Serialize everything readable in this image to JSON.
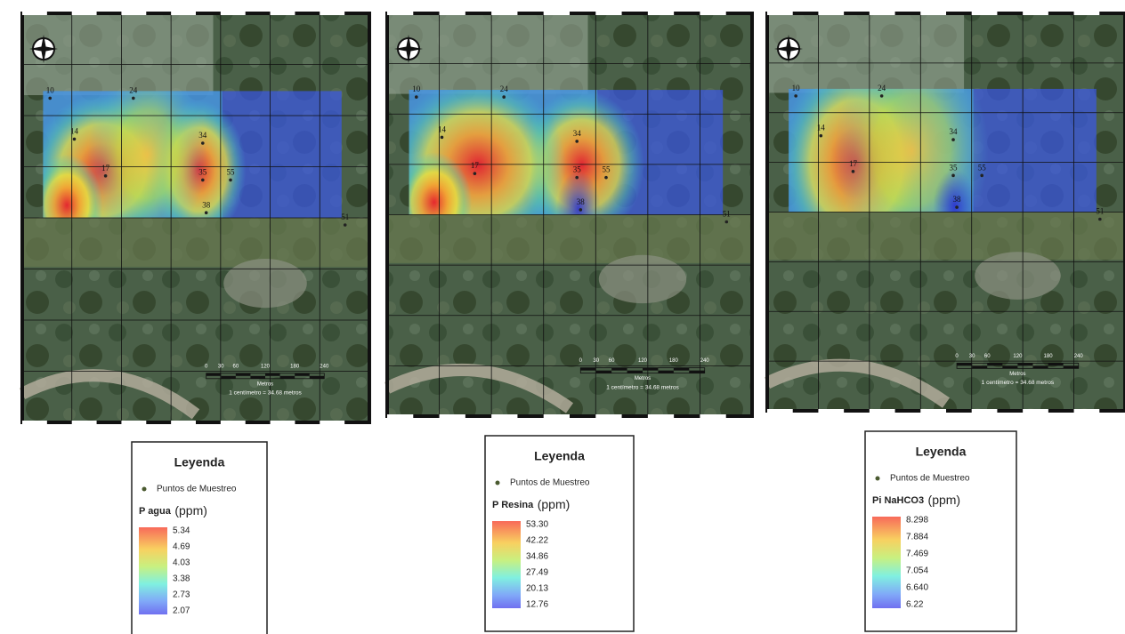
{
  "points": [
    "10",
    "24",
    "14",
    "34",
    "17",
    "35",
    "55",
    "38",
    "51"
  ],
  "scale": {
    "ticks": [
      "0",
      "30",
      "60",
      "120",
      "180",
      "240"
    ],
    "unit": "Metros",
    "ratio": "1 centímetro = 34.68 metros"
  },
  "panels": [
    {
      "legend": {
        "title": "Leyenda",
        "symbol_label": "Puntos de Muestreo",
        "variable": "P agua",
        "unit": "(ppm)",
        "values": [
          "5.34",
          "4.69",
          "4.03",
          "3.38",
          "2.73",
          "2.07"
        ]
      }
    },
    {
      "legend": {
        "title": "Leyenda",
        "symbol_label": "Puntos de Muestreo",
        "variable": "P Resina",
        "unit": "(ppm)",
        "values": [
          "53.30",
          "42.22",
          "34.86",
          "27.49",
          "20.13",
          "12.76"
        ]
      }
    },
    {
      "legend": {
        "title": "Leyenda",
        "symbol_label": "Puntos de Muestreo",
        "variable": "Pi NaHCO3",
        "unit": "(ppm)",
        "values": [
          "8.298",
          "7.884",
          "7.469",
          "7.054",
          "6.640",
          "6.22"
        ]
      }
    }
  ]
}
